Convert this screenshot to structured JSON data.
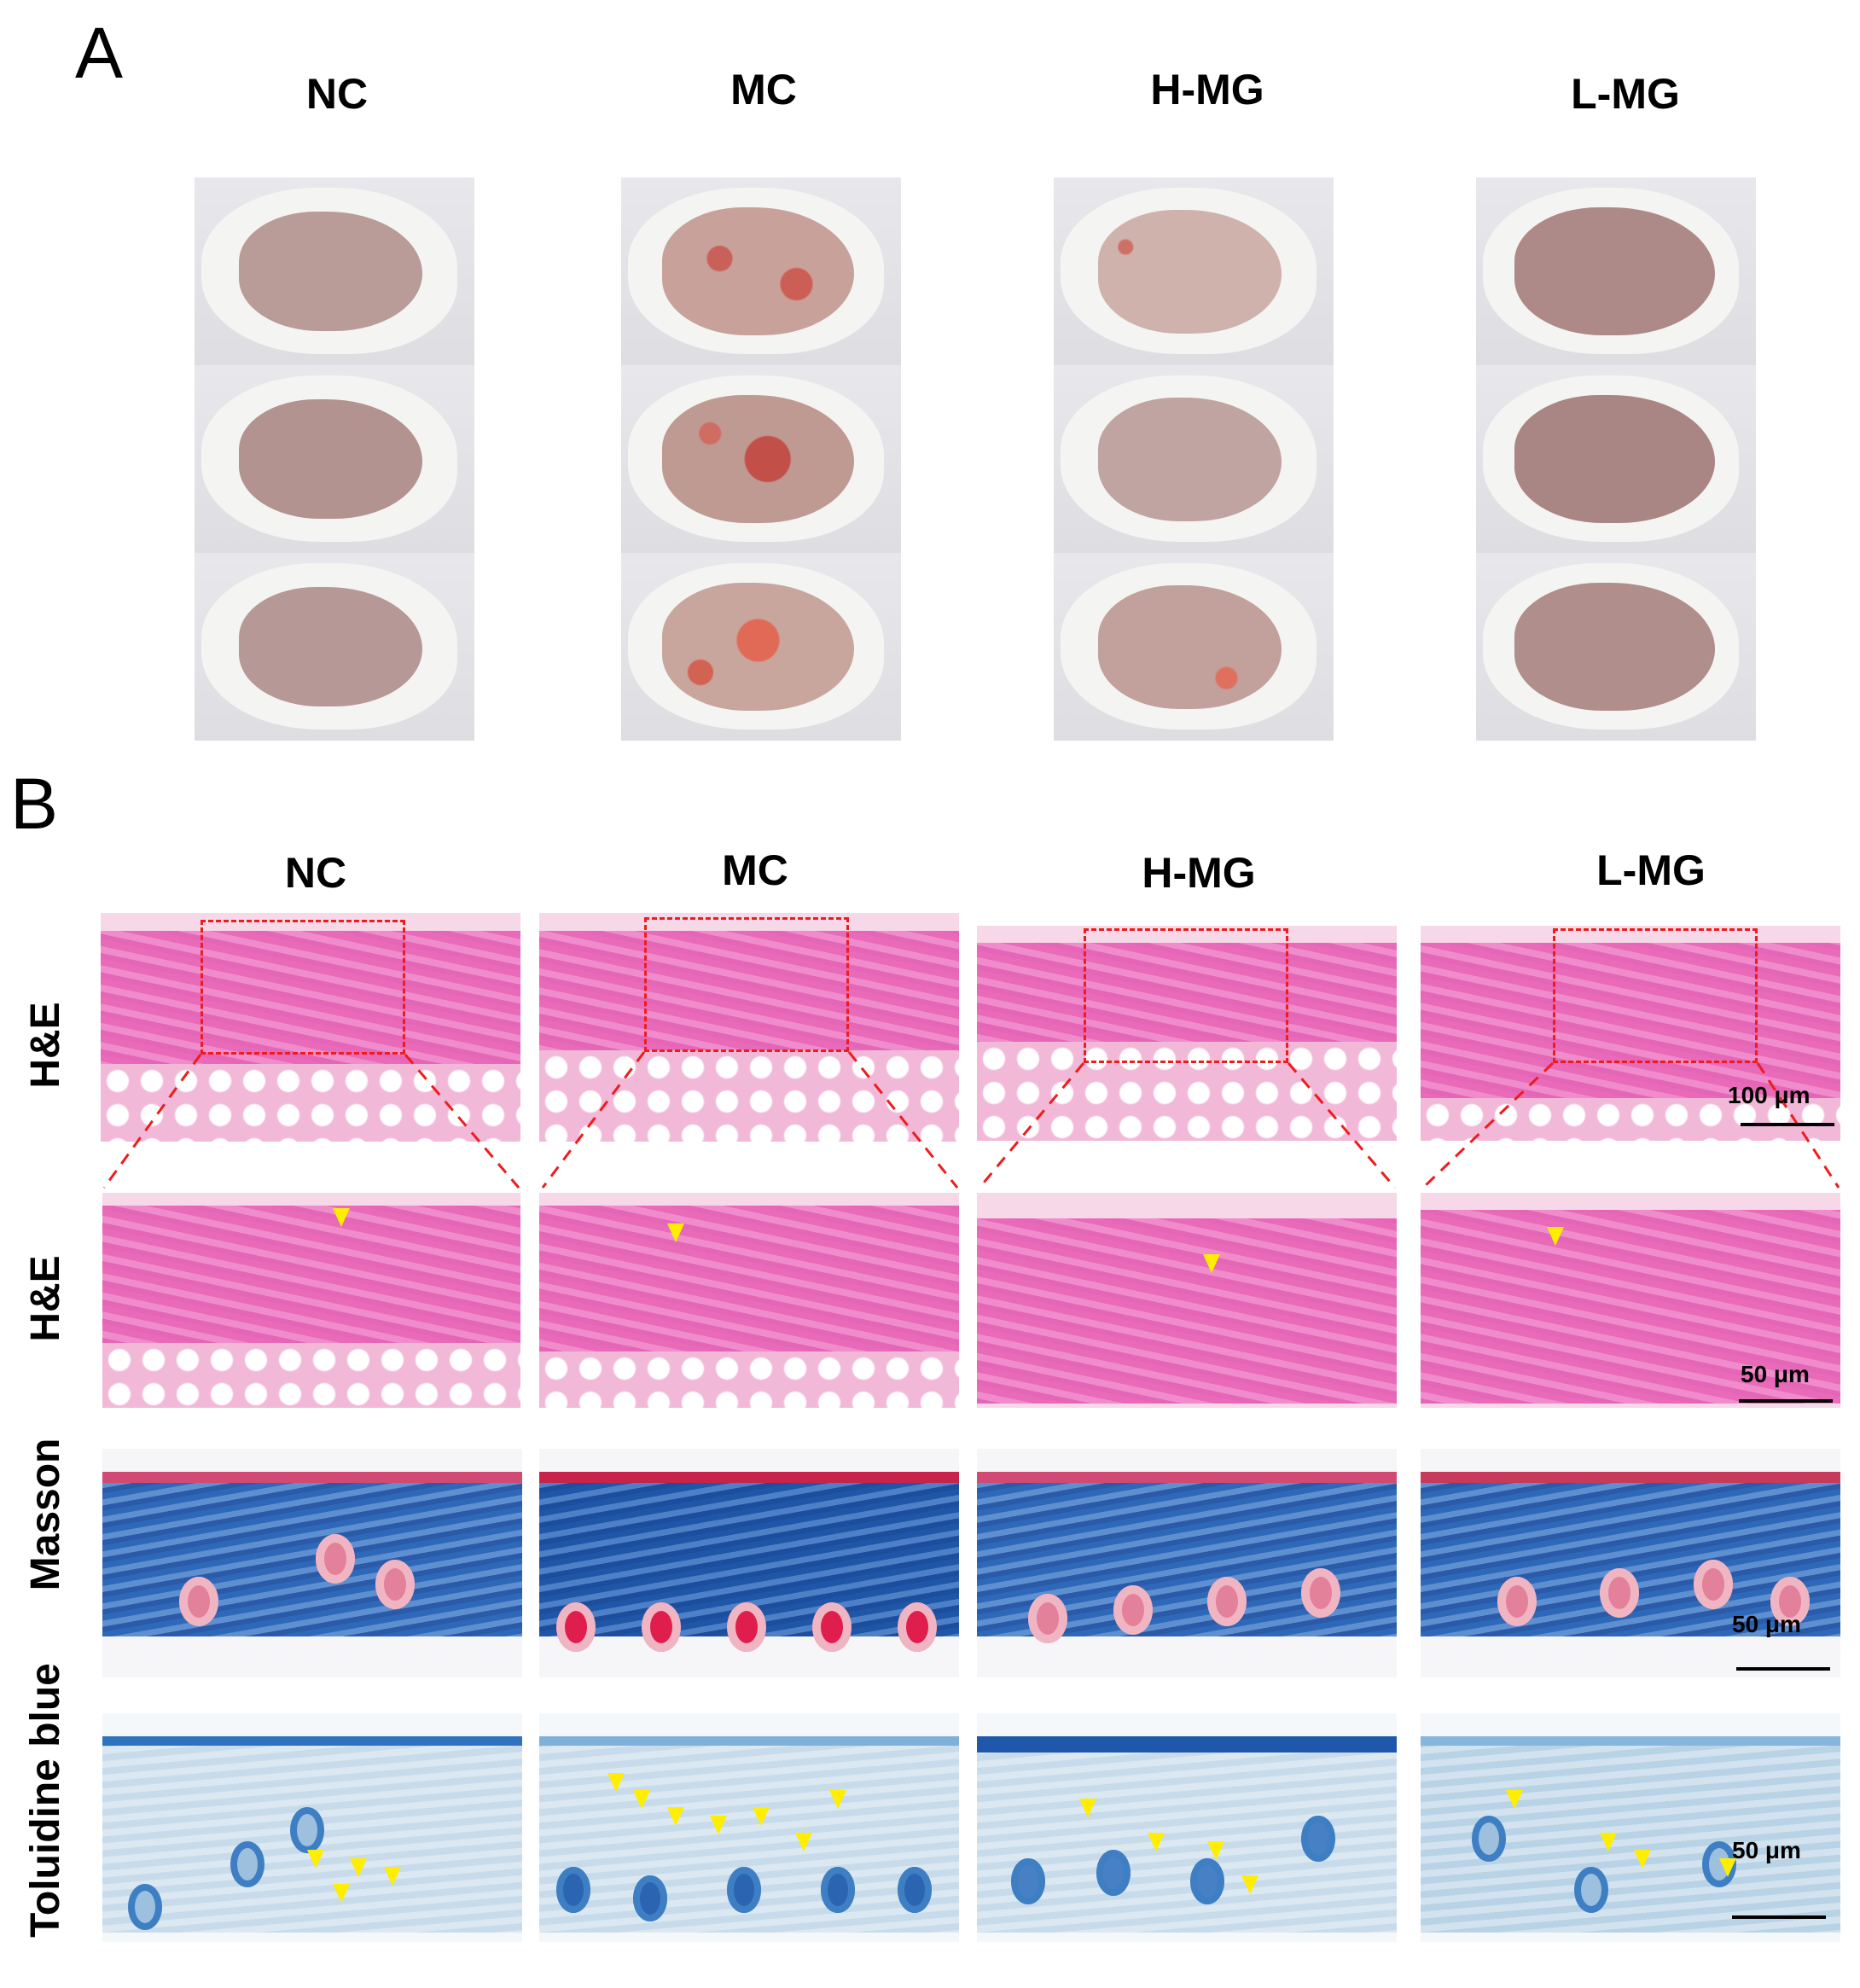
{
  "panel_a": {
    "letter": "A",
    "columns": [
      "NC",
      "MC",
      "H-MG",
      "L-MG"
    ]
  },
  "panel_b": {
    "letter": "B",
    "columns": [
      "NC",
      "MC",
      "H-MG",
      "L-MG"
    ],
    "rows": [
      "H&E",
      "H&E",
      "Masson",
      "Toluidine blue"
    ],
    "scale_bars": {
      "row1": "100 μm",
      "row2": "50 μm",
      "row3": "50 μm",
      "row4": "50 μm"
    }
  },
  "colors": {
    "inset_outline": "#ee1c1c",
    "arrow": "#ffee00",
    "he_stain": "#e565b7",
    "masson_blue": "#2e68b8",
    "toluidine_blue": "#2f72bd"
  }
}
